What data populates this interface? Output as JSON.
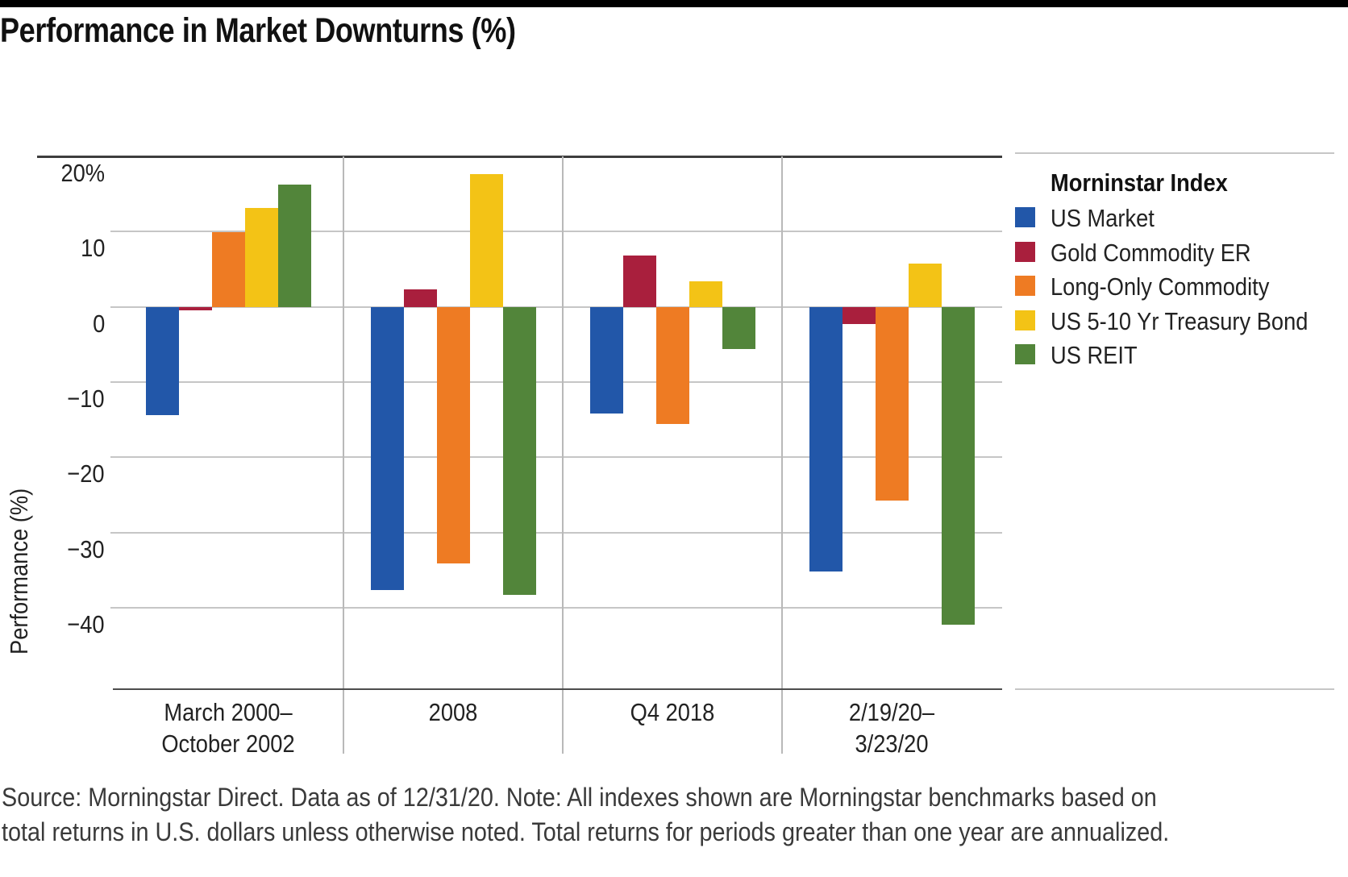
{
  "page": {
    "title": "Performance in Market Downturns (%)",
    "footer_line1": "Source: Morningstar Direct. Data as of 12/31/20. Note: All indexes shown are Morningstar benchmarks based on",
    "footer_line2": "total returns in U.S. dollars unless otherwise noted. Total returns for periods greater than one year are annualized."
  },
  "chart_data": {
    "type": "bar",
    "title": "Performance in Market Downturns (%)",
    "ylabel": "Performance (%)",
    "legend_title": "Morninstar Index",
    "legend_position": "right",
    "grid": "horizontal",
    "ylim": [
      -50.8,
      20
    ],
    "yticks": {
      "values": [
        20,
        10,
        0,
        -10,
        -20,
        -30,
        -40
      ],
      "labels": [
        "20%",
        "10",
        "0",
        "−10",
        "−20",
        "−30",
        "−40"
      ]
    },
    "categories": [
      [
        "March 2000–",
        "October 2002"
      ],
      [
        "2008"
      ],
      [
        "Q4 2018"
      ],
      [
        "2/19/20–",
        "3/23/20"
      ]
    ],
    "series": [
      {
        "name": "US Market",
        "color": "#2257a9",
        "values": [
          -14.4,
          -37.6,
          -14.2,
          -35.2
        ]
      },
      {
        "name": "Gold Commodity ER",
        "color": "#a91f3d",
        "values": [
          -0.5,
          2.3,
          6.8,
          -2.3
        ]
      },
      {
        "name": "Long-Only Commodity",
        "color": "#ee7b23",
        "values": [
          9.9,
          -34.1,
          -15.6,
          -25.8
        ]
      },
      {
        "name": "US 5-10 Yr Treasury Bond",
        "color": "#f3c316",
        "values": [
          13.2,
          17.7,
          3.4,
          5.8
        ]
      },
      {
        "name": "US REIT",
        "color": "#52853a",
        "values": [
          16.3,
          -38.3,
          -5.6,
          -42.3
        ]
      }
    ]
  }
}
